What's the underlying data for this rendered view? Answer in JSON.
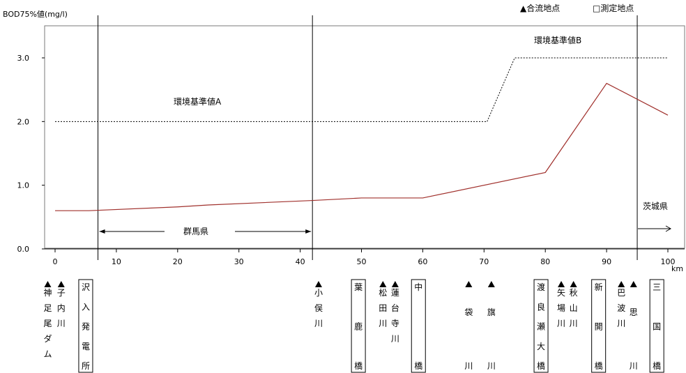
{
  "chart_data": {
    "type": "line",
    "ylabel": "BOD75%値(mg/l)",
    "xunit": "km",
    "xlim": [
      0,
      100
    ],
    "ylim": [
      0,
      3.5
    ],
    "xticks": [
      0,
      10,
      20,
      30,
      40,
      50,
      60,
      70,
      80,
      90,
      100
    ],
    "yticks": [
      0,
      1,
      2,
      3
    ],
    "ytick_labels": [
      "0.0",
      "1.0",
      "2.0",
      "3.0"
    ],
    "legend": {
      "confluence": "▲合流地点",
      "measurement": "□測定地点"
    },
    "series": [
      {
        "values_xy": [
          [
            0,
            0.6
          ],
          [
            5.5,
            0.6
          ],
          [
            20,
            0.66
          ],
          [
            25,
            0.69
          ],
          [
            42,
            0.76
          ],
          [
            50,
            0.8
          ],
          [
            60,
            0.8
          ],
          [
            80,
            1.2
          ],
          [
            90,
            2.6
          ],
          [
            100,
            2.1
          ]
        ],
        "color": "#a0302c"
      }
    ],
    "standards": [
      {
        "label": "環境基準値A",
        "points": [
          [
            0,
            2.0
          ],
          [
            70.5,
            2.0
          ]
        ],
        "color": "#000000"
      },
      {
        "label": "環境基準値B",
        "points": [
          [
            70.5,
            2.0
          ],
          [
            75,
            3.0
          ],
          [
            100,
            3.0
          ]
        ],
        "color": "#000000"
      }
    ],
    "boundaries_km": [
      7,
      42,
      95
    ],
    "regions": [
      {
        "label": "群馬県",
        "from": 7,
        "to": 42
      },
      {
        "label": "茨城県",
        "from": 95,
        "to": 100
      }
    ],
    "annotations": [
      {
        "km": -1.2,
        "kind": "confluence",
        "name": "神足尾ダム"
      },
      {
        "km": 1,
        "kind": "confluence",
        "name": "子内川"
      },
      {
        "km": 5,
        "kind": "measurement",
        "name": "沢入発電所"
      },
      {
        "km": 43,
        "kind": "confluence",
        "name": "小俣川"
      },
      {
        "km": 49.5,
        "kind": "measurement",
        "name": "葉鹿橋"
      },
      {
        "km": 53.5,
        "kind": "confluence",
        "name": "松田川"
      },
      {
        "km": 55.5,
        "kind": "confluence",
        "name": "蓮台寺川"
      },
      {
        "km": 59.3,
        "kind": "measurement",
        "name": "中橋"
      },
      {
        "km": 67.5,
        "kind": "confluence",
        "name": "袋川"
      },
      {
        "km": 71.2,
        "kind": "confluence",
        "name": "旗川"
      },
      {
        "km": 79.3,
        "kind": "measurement",
        "name": "渡良瀬大橋"
      },
      {
        "km": 82.6,
        "kind": "confluence",
        "name": "矢場川"
      },
      {
        "km": 84.6,
        "kind": "confluence",
        "name": "秋山川"
      },
      {
        "km": 88.7,
        "kind": "measurement",
        "name": "新開橋"
      },
      {
        "km": 92.4,
        "kind": "confluence",
        "name": "巴波川"
      },
      {
        "km": 94.4,
        "kind": "confluence",
        "name": "思川"
      },
      {
        "km": 98.2,
        "kind": "measurement",
        "name": "三国橋"
      }
    ]
  }
}
